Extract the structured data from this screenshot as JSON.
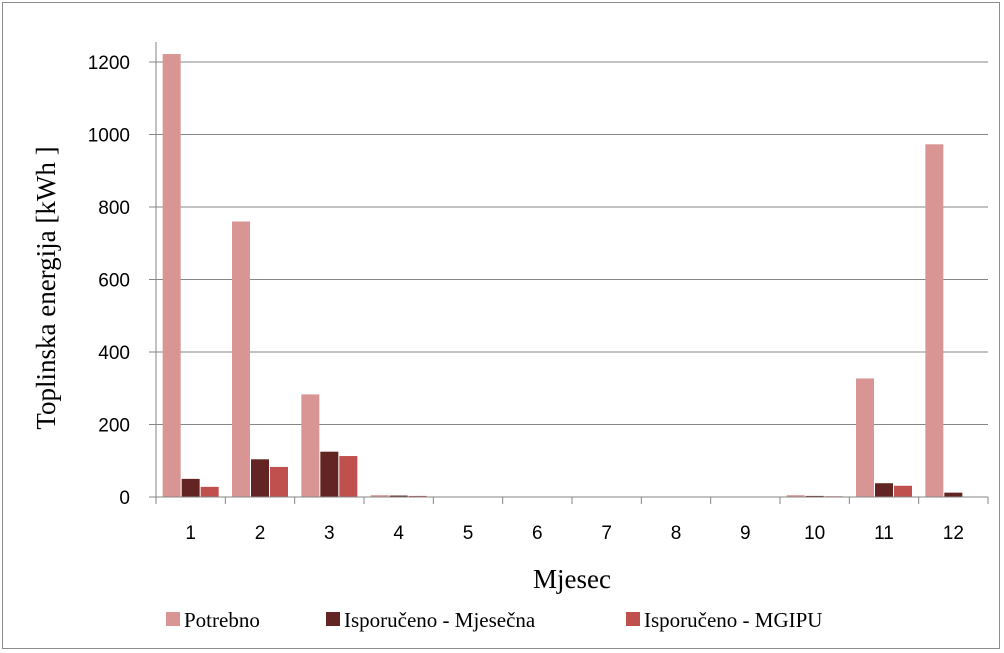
{
  "chart_data": {
    "type": "bar",
    "categories": [
      "1",
      "2",
      "3",
      "4",
      "5",
      "6",
      "7",
      "8",
      "9",
      "10",
      "11",
      "12"
    ],
    "series": [
      {
        "name": "Potrebno",
        "color": "#d99594",
        "values": [
          1222,
          760,
          283,
          5,
          0,
          0,
          0,
          0,
          0,
          5,
          327,
          973
        ]
      },
      {
        "name": "Isporučeno - Mjesečna",
        "color": "#632523",
        "values": [
          50,
          104,
          125,
          4,
          0,
          0,
          0,
          0,
          0,
          3,
          38,
          12
        ]
      },
      {
        "name": "Isporučeno - MGIPU",
        "color": "#c0504d",
        "values": [
          28,
          83,
          113,
          3,
          0,
          0,
          0,
          0,
          0,
          2,
          31,
          0
        ]
      }
    ],
    "xlabel": "Mjesec",
    "ylabel": "Toplinska energija  [kWh ]",
    "ylim": [
      0,
      1200
    ],
    "yticks": [
      0,
      200,
      400,
      600,
      800,
      1000,
      1200
    ],
    "grid": true,
    "legend": "bottom"
  }
}
